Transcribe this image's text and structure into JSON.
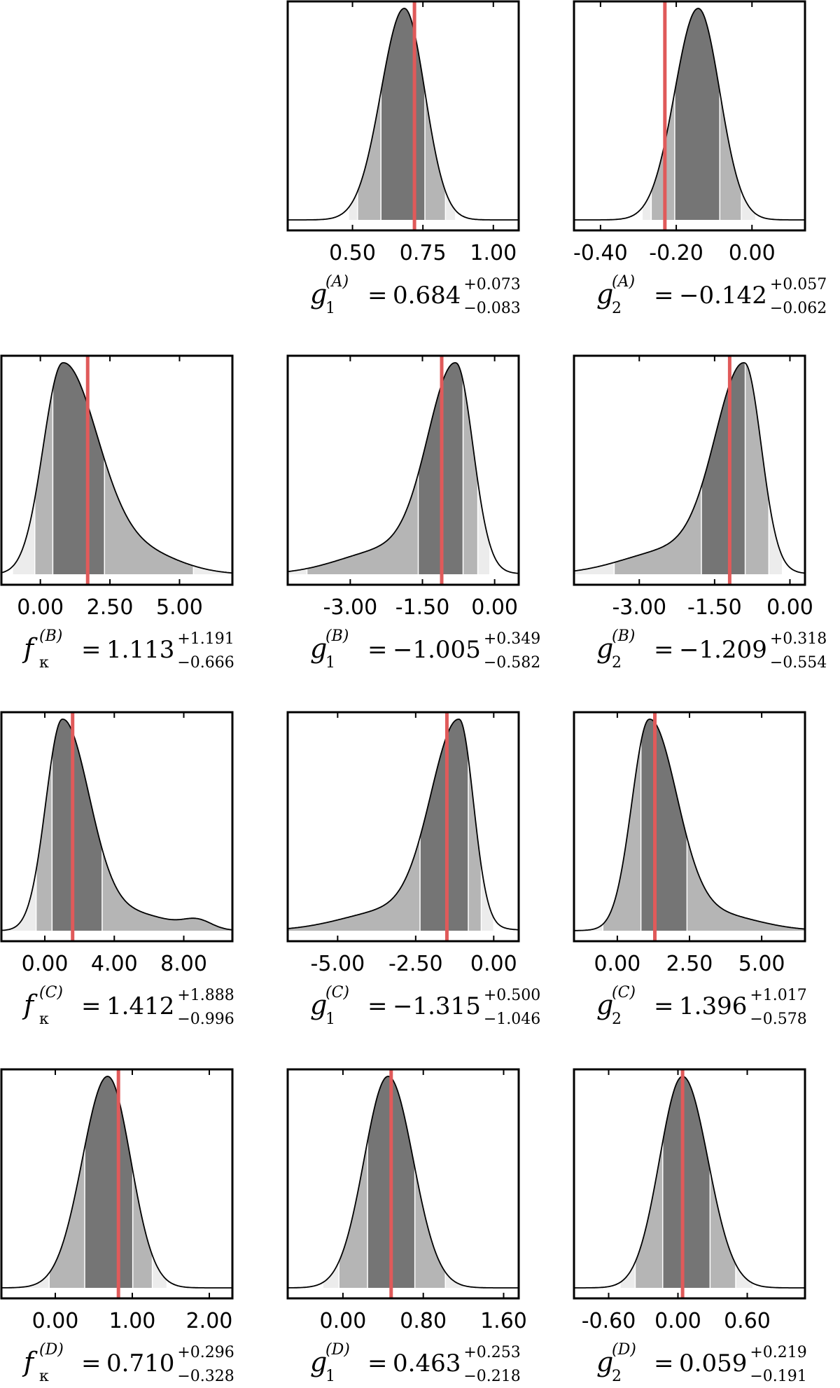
{
  "colors": {
    "band_inner": "#757575",
    "band_mid": "#b5b5b5",
    "band_outer": "#ececec",
    "truth_line": "#e05a5a",
    "frame": "#000000",
    "curve": "#000000"
  },
  "chart_data": [
    {
      "id": "gA1",
      "type": "area",
      "row": 0,
      "col": 1,
      "symbol": "g",
      "sub": "1",
      "sup": "(A)",
      "value": "0.684",
      "plus": "+0.073",
      "minus": "−0.083",
      "xlim": [
        0.27,
        1.09
      ],
      "ticks": [
        0.5,
        0.75,
        1.0
      ],
      "tick_labels": [
        "0.50",
        "0.75",
        "1.00"
      ],
      "mode": 0.684,
      "sigma_left": 0.083,
      "sigma_right": 0.073,
      "truth": 0.72,
      "bands": {
        "inner": [
          0.601,
          0.757
        ],
        "mid": [
          0.518,
          0.83
        ],
        "outer": [
          0.486,
          0.866
        ]
      }
    },
    {
      "id": "gA2",
      "type": "area",
      "row": 0,
      "col": 2,
      "symbol": "g",
      "sub": "2",
      "sup": "(A)",
      "value": "−0.142",
      "plus": "+0.057",
      "minus": "−0.062",
      "xlim": [
        -0.47,
        0.14
      ],
      "ticks": [
        -0.4,
        -0.2,
        0.0
      ],
      "tick_labels": [
        "-0.40",
        "-0.20",
        "0.00"
      ],
      "mode": -0.142,
      "sigma_left": 0.062,
      "sigma_right": 0.057,
      "truth": -0.23,
      "bands": {
        "inner": [
          -0.204,
          -0.085
        ],
        "mid": [
          -0.266,
          -0.028
        ],
        "outer": [
          -0.29,
          0.01
        ]
      }
    },
    {
      "id": "fB",
      "type": "area",
      "row": 1,
      "col": 0,
      "symbol": "f",
      "sub": "κ",
      "sup": "(B)",
      "value": "1.113",
      "plus": "+1.191",
      "minus": "−0.666",
      "xlim": [
        -1.4,
        6.9
      ],
      "ticks": [
        0.0,
        2.5,
        5.0
      ],
      "tick_labels": [
        "0.00",
        "2.50",
        "5.00"
      ],
      "mode": 0.8,
      "sigma_left": 0.7,
      "sigma_right": 1.25,
      "tail": {
        "center": 3.6,
        "width": 1.4,
        "amp": 0.1
      },
      "truth": 1.7,
      "bands": {
        "inner": [
          0.447,
          2.304
        ],
        "mid": [
          -0.2,
          5.5
        ],
        "outer": [
          -1.0,
          6.9
        ]
      }
    },
    {
      "id": "gB1",
      "type": "area",
      "row": 1,
      "col": 1,
      "symbol": "g",
      "sub": "1",
      "sup": "(B)",
      "value": "−1.005",
      "plus": "+0.349",
      "minus": "−0.582",
      "xlim": [
        -4.3,
        0.5
      ],
      "ticks": [
        -3.0,
        -1.5,
        0.0
      ],
      "tick_labels": [
        "-3.00",
        "-1.50",
        "0.00"
      ],
      "mode": -0.8,
      "sigma_left": 0.58,
      "sigma_right": 0.35,
      "tail": {
        "center": -2.2,
        "width": 1.0,
        "amp": 0.12
      },
      "truth": -1.1,
      "bands": {
        "inner": [
          -1.587,
          -0.656
        ],
        "mid": [
          -3.9,
          -0.35
        ],
        "outer": [
          -4.3,
          -0.1
        ]
      }
    },
    {
      "id": "gB2",
      "type": "area",
      "row": 1,
      "col": 2,
      "symbol": "g",
      "sub": "2",
      "sup": "(B)",
      "value": "−1.209",
      "plus": "+0.318",
      "minus": "−0.554",
      "xlim": [
        -4.3,
        0.3
      ],
      "ticks": [
        -3.0,
        -1.5,
        0.0
      ],
      "tick_labels": [
        "-3.00",
        "-1.50",
        "0.00"
      ],
      "mode": -0.9,
      "sigma_left": 0.58,
      "sigma_right": 0.33,
      "tail": {
        "center": -2.3,
        "width": 1.0,
        "amp": 0.12
      },
      "truth": -1.2,
      "bands": {
        "inner": [
          -1.763,
          -0.891
        ],
        "mid": [
          -3.5,
          -0.42
        ],
        "outer": [
          -4.3,
          -0.15
        ]
      }
    },
    {
      "id": "fC",
      "type": "area",
      "row": 2,
      "col": 0,
      "symbol": "f",
      "sub": "κ",
      "sup": "(C)",
      "value": "1.412",
      "plus": "+1.888",
      "minus": "−0.996",
      "xlim": [
        -2.5,
        10.8
      ],
      "ticks": [
        0.0,
        4.0,
        8.0
      ],
      "tick_labels": [
        "0.00",
        "4.00",
        "8.00"
      ],
      "mode": 1.0,
      "sigma_left": 0.95,
      "sigma_right": 1.55,
      "tail": {
        "center": 5.0,
        "width": 2.2,
        "amp": 0.08
      },
      "bump": {
        "center": 8.8,
        "width": 0.8,
        "amp": 0.04
      },
      "truth": 1.6,
      "bands": {
        "inner": [
          0.416,
          3.3
        ],
        "mid": [
          -0.5,
          10.8
        ],
        "outer": [
          -2.5,
          10.8
        ]
      }
    },
    {
      "id": "gC1",
      "type": "area",
      "row": 2,
      "col": 1,
      "symbol": "g",
      "sub": "1",
      "sup": "(C)",
      "value": "−1.315",
      "plus": "+0.500",
      "minus": "−1.046",
      "xlim": [
        -6.6,
        0.8
      ],
      "ticks": [
        -5.0,
        -2.5,
        0.0
      ],
      "tick_labels": [
        "-5.00",
        "-2.50",
        "0.00"
      ],
      "mode": -1.1,
      "sigma_left": 0.9,
      "sigma_right": 0.45,
      "tail": {
        "center": -3.2,
        "width": 1.6,
        "amp": 0.1
      },
      "truth": -1.5,
      "bands": {
        "inner": [
          -2.361,
          -0.815
        ],
        "mid": [
          -6.6,
          -0.4
        ],
        "outer": [
          -6.6,
          0.0
        ]
      }
    },
    {
      "id": "gC2",
      "type": "area",
      "row": 2,
      "col": 2,
      "symbol": "g",
      "sub": "2",
      "sup": "(C)",
      "value": "1.396",
      "plus": "+1.017",
      "minus": "−0.578",
      "xlim": [
        -1.5,
        6.5
      ],
      "ticks": [
        0.0,
        2.5,
        5.0
      ],
      "tick_labels": [
        "0.00",
        "2.50",
        "5.00"
      ],
      "mode": 1.1,
      "sigma_left": 0.6,
      "sigma_right": 0.95,
      "tail": {
        "center": 3.3,
        "width": 1.5,
        "amp": 0.08
      },
      "truth": 1.3,
      "bands": {
        "inner": [
          0.818,
          2.413
        ],
        "mid": [
          -0.5,
          6.5
        ],
        "outer": [
          -1.5,
          6.5
        ]
      }
    },
    {
      "id": "fD",
      "type": "area",
      "row": 3,
      "col": 0,
      "symbol": "f",
      "sub": "κ",
      "sup": "(D)",
      "value": "0.710",
      "plus": "+0.296",
      "minus": "−0.328",
      "xlim": [
        -0.7,
        2.3
      ],
      "ticks": [
        0.0,
        1.0,
        2.0
      ],
      "tick_labels": [
        "0.00",
        "1.00",
        "2.00"
      ],
      "mode": 0.68,
      "sigma_left": 0.33,
      "sigma_right": 0.3,
      "truth": 0.82,
      "bands": {
        "inner": [
          0.382,
          1.006
        ],
        "mid": [
          -0.08,
          1.26
        ],
        "outer": [
          -0.4,
          1.45
        ]
      }
    },
    {
      "id": "gD1",
      "type": "area",
      "row": 3,
      "col": 1,
      "symbol": "g",
      "sub": "1",
      "sup": "(D)",
      "value": "0.463",
      "plus": "+0.253",
      "minus": "−0.218",
      "xlim": [
        -0.55,
        1.75
      ],
      "ticks": [
        0.0,
        0.8,
        1.6
      ],
      "tick_labels": [
        "0.00",
        "0.80",
        "1.60"
      ],
      "mode": 0.45,
      "sigma_left": 0.24,
      "sigma_right": 0.25,
      "truth": 0.48,
      "bands": {
        "inner": [
          0.245,
          0.716
        ],
        "mid": [
          -0.04,
          1.02
        ],
        "outer": [
          -0.2,
          1.2
        ]
      }
    },
    {
      "id": "gD2",
      "type": "area",
      "row": 3,
      "col": 2,
      "symbol": "g",
      "sub": "2",
      "sup": "(D)",
      "value": "0.059",
      "plus": "+0.219",
      "minus": "−0.191",
      "xlim": [
        -0.9,
        1.1
      ],
      "ticks": [
        -0.6,
        0.0,
        0.6
      ],
      "tick_labels": [
        "-0.60",
        "0.00",
        "0.60"
      ],
      "mode": 0.04,
      "sigma_left": 0.2,
      "sigma_right": 0.22,
      "truth": 0.04,
      "bands": {
        "inner": [
          -0.132,
          0.278
        ],
        "mid": [
          -0.37,
          0.5
        ],
        "outer": [
          -0.5,
          0.65
        ]
      }
    }
  ]
}
